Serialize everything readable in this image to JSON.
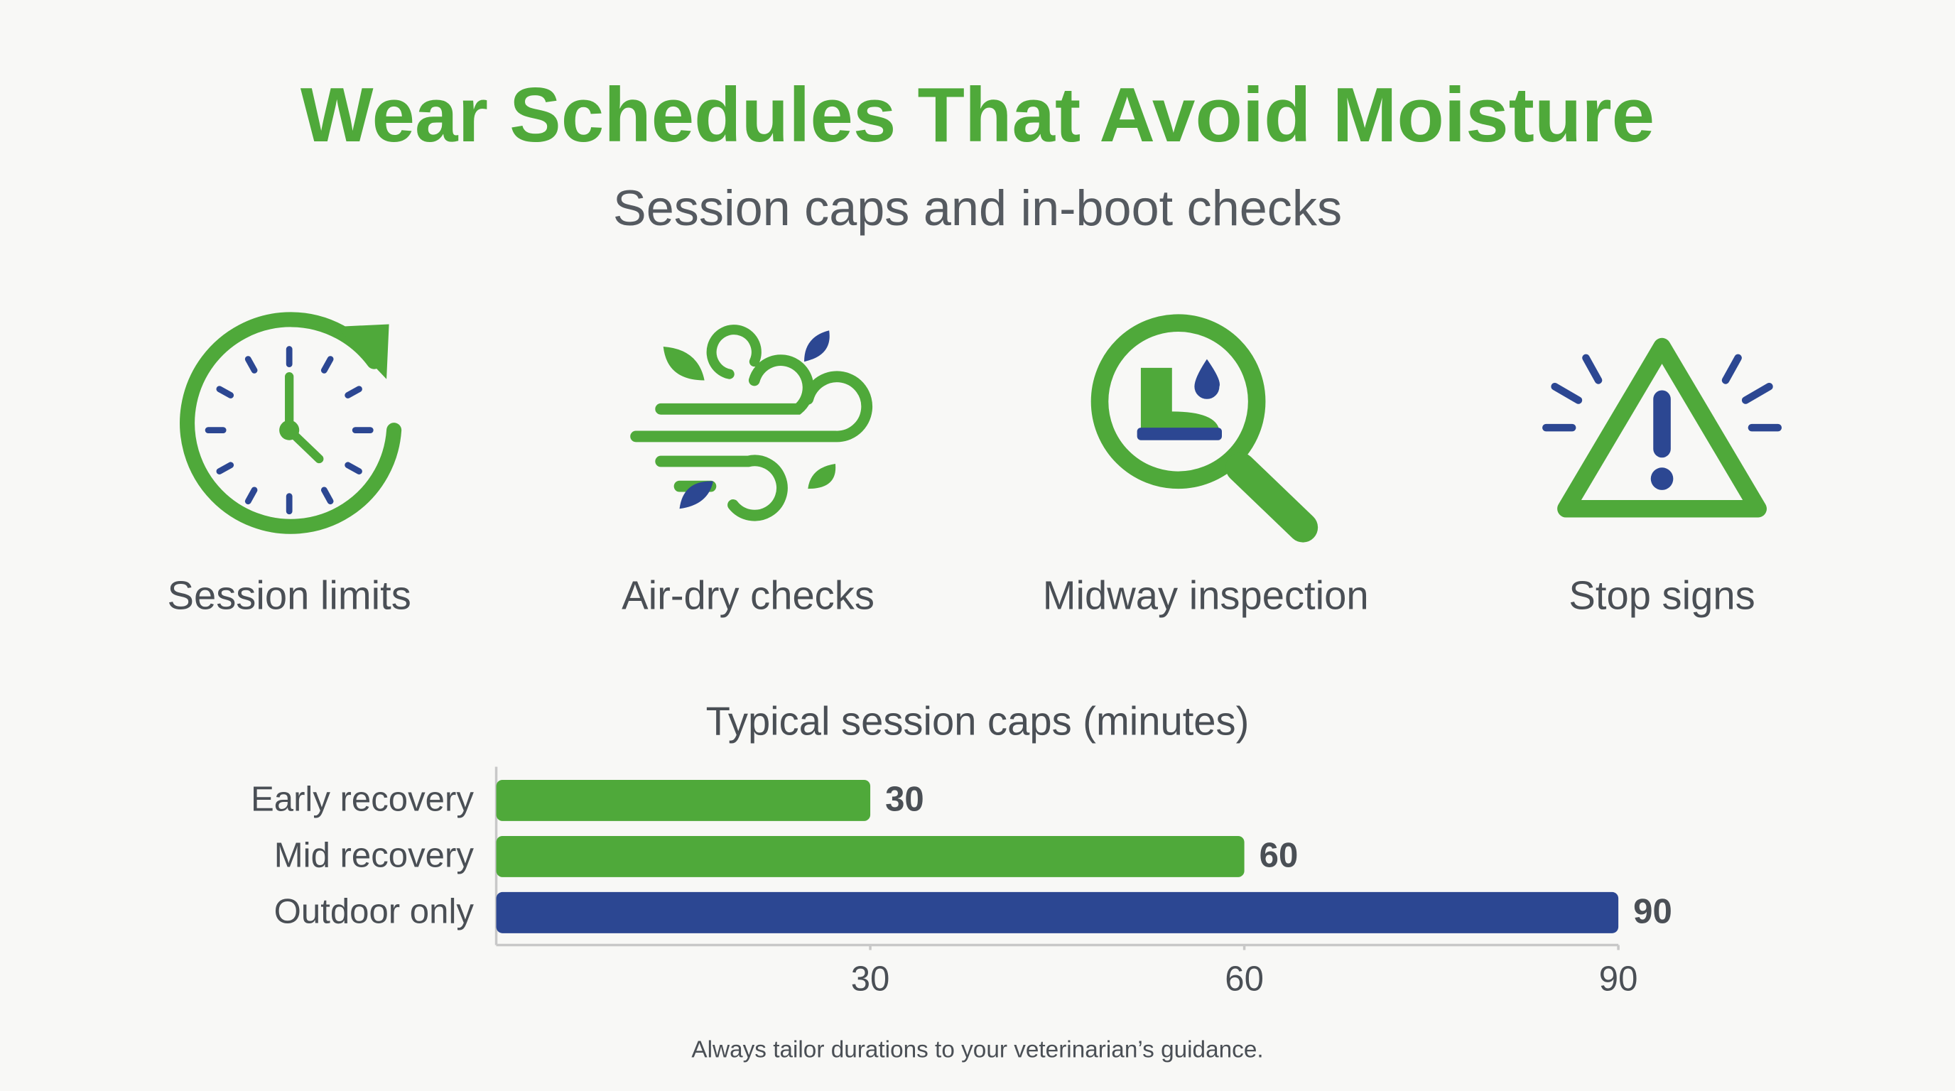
{
  "header": {
    "title": "Wear Schedules That Avoid Moisture",
    "subtitle": "Session caps and in-boot checks"
  },
  "icons": [
    {
      "label": "Session limits"
    },
    {
      "label": "Air-dry checks"
    },
    {
      "label": "Midway inspection"
    },
    {
      "label": "Stop signs"
    }
  ],
  "chart_data": {
    "type": "bar",
    "orientation": "horizontal",
    "title": "Typical session caps (minutes)",
    "categories": [
      "Early recovery",
      "Mid recovery",
      "Outdoor only"
    ],
    "values": [
      30,
      60,
      90
    ],
    "colors": [
      "#4fa93a",
      "#4fa93a",
      "#2c4792"
    ],
    "xlim": [
      0,
      90
    ],
    "xticks": [
      30,
      60,
      90
    ],
    "grid": false
  },
  "footnote": "Always tailor durations to your veterinarian’s guidance."
}
